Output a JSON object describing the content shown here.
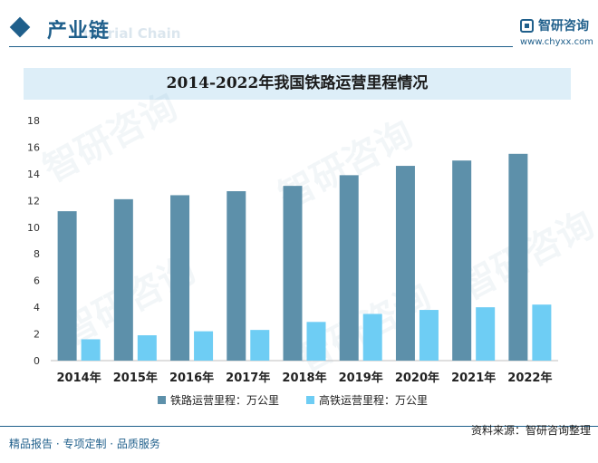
{
  "header": {
    "section_title": "产业链",
    "section_ghost": "ustrial Chain",
    "brand_name": "智研咨询",
    "brand_url": "www.chyxx.com"
  },
  "chart_data": {
    "type": "bar",
    "title": "2014-2022年我国铁路运营里程情况",
    "categories": [
      "2014年",
      "2015年",
      "2016年",
      "2017年",
      "2018年",
      "2019年",
      "2020年",
      "2021年",
      "2022年"
    ],
    "series": [
      {
        "name": "铁路运营里程：万公里",
        "color": "#5d90aa",
        "values": [
          11.2,
          12.1,
          12.4,
          12.7,
          13.1,
          13.9,
          14.6,
          15.0,
          15.5
        ]
      },
      {
        "name": "高铁运营里程：万公里",
        "color": "#6ecdf4",
        "values": [
          1.6,
          1.9,
          2.2,
          2.3,
          2.9,
          3.5,
          3.8,
          4.0,
          4.2
        ]
      }
    ],
    "ylim": [
      0,
      18
    ],
    "yticks": [
      0,
      2,
      4,
      6,
      8,
      10,
      12,
      14,
      16,
      18
    ],
    "xlabel": "",
    "ylabel": "",
    "grid": false,
    "legend": "bottom-center"
  },
  "watermark": {
    "text": "智研咨询"
  },
  "footer": {
    "left": "精品报告 · 专项定制 · 品质服务",
    "source": "资料来源：智研咨询整理"
  }
}
